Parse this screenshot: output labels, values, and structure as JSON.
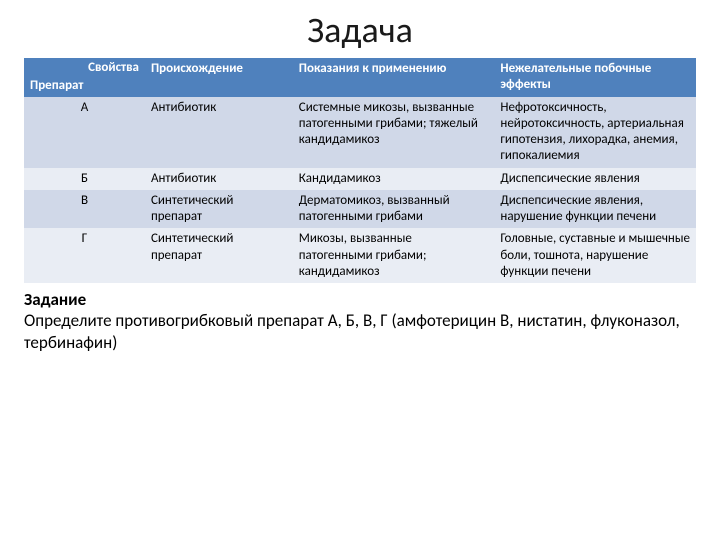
{
  "title": "Задача",
  "header": {
    "corner_top": "Свойства",
    "corner_bottom": "Препарат",
    "col1": "Происхождение",
    "col2": "Показания к применению",
    "col3": "Нежелательные побочные эффекты"
  },
  "rows": [
    {
      "drug": "А",
      "origin": "Антибиотик",
      "indication": "Системные микозы, вызванные патогенными грибами; тяжелый кандидамикоз",
      "side": "Нефротоксичность, нейротоксичность, артериальная гипотензия, лихорадка, анемия, гипокалиемия"
    },
    {
      "drug": "Б",
      "origin": "Антибиотик",
      "indication": "Кандидамикоз",
      "side": "Диспепсические явления"
    },
    {
      "drug": "В",
      "origin": "Синтетический препарат",
      "indication": "Дерматомикоз, вызванный патогенными грибами",
      "side": "Диспепсические явления, нарушение функции печени"
    },
    {
      "drug": "Г",
      "origin": "Синтетический препарат",
      "indication": "Микозы, вызванные патогенными грибами; кандидамикоз",
      "side": "Головные, суставные и мышечные боли, тошнота, нарушение функции печени"
    }
  ],
  "task": {
    "label": "Задание",
    "text": "Определите противогрибковый препарат А, Б, В, Г (амфотерицин В, нистатин, флуконазол, тербинафин)"
  },
  "colors": {
    "header_bg": "#4f81bd",
    "header_text": "#ffffff",
    "band1_bg": "#d0d8e8",
    "band2_bg": "#e9edf4",
    "text": "#000000"
  }
}
